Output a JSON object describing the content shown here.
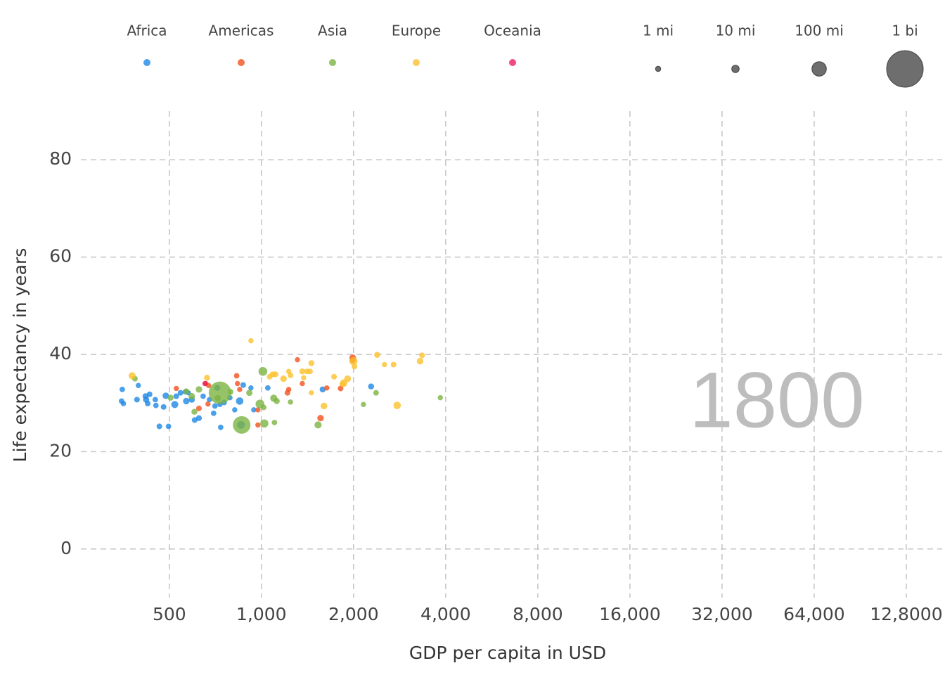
{
  "chart_data": {
    "type": "scatter",
    "year_label": "1800",
    "x_label": "GDP per capita in USD",
    "y_label": "Life expectancy in years",
    "log_x": true,
    "log_base": 2,
    "grid": true,
    "xlim": [
      257,
      167700
    ],
    "ylim": [
      -10,
      90
    ],
    "xticks": [
      {
        "value": 500,
        "label": "500"
      },
      {
        "value": 1000,
        "label": "1,000"
      },
      {
        "value": 2000,
        "label": "2,000"
      },
      {
        "value": 4000,
        "label": "4,000"
      },
      {
        "value": 8000,
        "label": "8,000"
      },
      {
        "value": 16000,
        "label": "16,000"
      },
      {
        "value": 32000,
        "label": "32,000"
      },
      {
        "value": 64000,
        "label": "64,000"
      },
      {
        "value": 128000,
        "label": "12,8000"
      }
    ],
    "yticks": [
      0,
      20,
      40,
      60,
      80
    ],
    "size_legend": [
      {
        "value": 1,
        "label": "1 mi"
      },
      {
        "value": 10,
        "label": "10 mi"
      },
      {
        "value": 100,
        "label": "100 mi"
      },
      {
        "value": 1000,
        "label": "1 bi"
      }
    ],
    "series": [
      {
        "name": "Africa",
        "color": "#1e88e5",
        "x": [
          351,
          354,
          349,
          392,
          396,
          418,
          420,
          425,
          431,
          450,
          452,
          464,
          479,
          487,
          497,
          521,
          527,
          544,
          564,
          577,
          592,
          605,
          625,
          645,
          676,
          698,
          705,
          717,
          732,
          736,
          755,
          789,
          818,
          849,
          858,
          872,
          924,
          944,
          1049,
          1585,
          2282,
          568
        ],
        "values": [
          32.8,
          29.9,
          30.4,
          30.7,
          33.6,
          31.4,
          30.7,
          29.9,
          31.8,
          30.7,
          29.5,
          25.2,
          29.2,
          31.5,
          25.2,
          29.7,
          31.4,
          32.1,
          32.3,
          32.1,
          30.7,
          26.5,
          26.9,
          31.4,
          30.7,
          27.9,
          29.4,
          33.1,
          29.7,
          25.0,
          30.1,
          31.1,
          28.6,
          30.4,
          25.5,
          33.7,
          33.1,
          28.6,
          33.1,
          32.8,
          33.4,
          30.4
        ],
        "sizes": [
          1.5,
          1.2,
          1.5,
          2,
          1,
          3,
          4,
          2,
          2,
          1.5,
          1.5,
          2,
          2,
          5,
          1.5,
          8,
          2,
          2,
          1,
          1,
          4,
          2,
          2.5,
          1.5,
          1,
          1.5,
          1.5,
          3,
          1,
          1.5,
          2,
          1,
          1,
          10,
          12,
          2,
          1,
          1,
          1.5,
          3,
          3,
          5
        ]
      },
      {
        "name": "Americas",
        "color": "#f4511e",
        "x": [
          527,
          625,
          658,
          672,
          830,
          835,
          849,
          974,
          974,
          1216,
          1228,
          1311,
          1360,
          1636,
          1560,
          1814,
          1987,
          1987,
          669
        ],
        "values": [
          33.0,
          28.9,
          34.0,
          33.6,
          35.6,
          34.0,
          32.8,
          25.5,
          28.6,
          32.1,
          32.8,
          38.9,
          34.0,
          33.1,
          26.9,
          33.0,
          39.3,
          38.8,
          29.8
        ],
        "sizes": [
          1,
          2,
          1,
          1,
          1.5,
          1,
          1,
          1,
          1,
          2,
          1,
          1,
          1,
          1,
          5,
          2,
          6,
          3,
          1
        ]
      },
      {
        "name": "Asia",
        "color": "#7cb342",
        "x": [
          386,
          505,
          592,
          604,
          625,
          732,
          793,
          913,
          989,
          1011,
          1022,
          1017,
          1097,
          1103,
          1122,
          1244,
          1531,
          2154,
          2369,
          3842,
          568,
          720,
          862
        ],
        "values": [
          35.0,
          31.1,
          31.4,
          28.2,
          32.8,
          32.1,
          32.3,
          32.1,
          29.8,
          36.5,
          25.8,
          29.1,
          31.0,
          26.0,
          30.4,
          30.2,
          25.5,
          29.7,
          32.1,
          31.1,
          32.4,
          31.0,
          25.5
        ],
        "sizes": [
          2,
          3,
          5,
          3,
          5,
          320,
          2,
          4,
          20,
          20,
          15,
          2,
          8,
          1.5,
          3,
          1,
          8,
          1,
          2,
          1,
          3,
          4,
          170
        ]
      },
      {
        "name": "Europe",
        "color": "#fbc02d",
        "x": [
          378,
          664,
          924,
          1064,
          1087,
          1111,
          1181,
          1228,
          1244,
          1360,
          1374,
          1409,
          1441,
          1456,
          1456,
          1601,
          1727,
          1839,
          1857,
          1912,
          1998,
          2014,
          2388,
          2524,
          2703,
          2777,
          3299,
          3349
        ],
        "values": [
          35.6,
          35.2,
          42.8,
          35.4,
          35.9,
          35.9,
          35.0,
          36.5,
          35.7,
          36.5,
          35.2,
          36.5,
          36.5,
          38.2,
          32.1,
          29.4,
          35.4,
          33.9,
          34.1,
          35.0,
          38.6,
          37.5,
          39.9,
          37.9,
          37.9,
          29.5,
          38.6,
          39.8
        ],
        "sizes": [
          8,
          3,
          1,
          2,
          2,
          3,
          5,
          1,
          2,
          3,
          1,
          2,
          2,
          3,
          1,
          6,
          2,
          2,
          10,
          6,
          15,
          2,
          3,
          1,
          2,
          10,
          5,
          2
        ]
      },
      {
        "name": "Oceania",
        "color": "#e91e63",
        "x": [
          654
        ],
        "values": [
          34.0
        ],
        "sizes": [
          1
        ]
      }
    ]
  }
}
